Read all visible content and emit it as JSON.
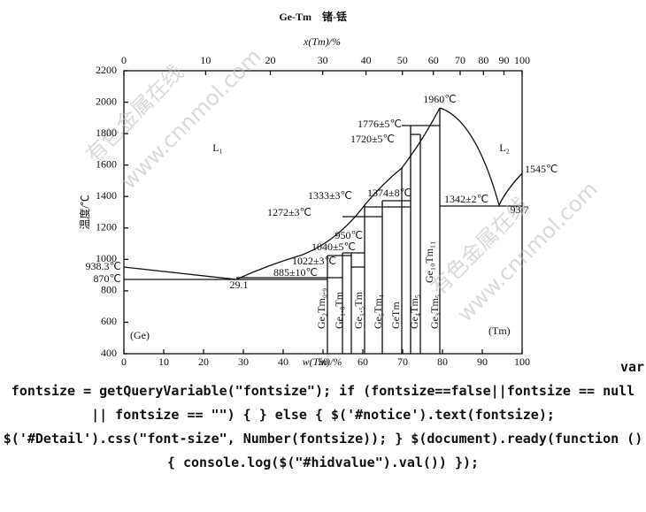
{
  "diagram": {
    "title": "Ge-Tm",
    "title_cn": "锗-铥",
    "top_axis_label": "x(Tm)/%",
    "top_ticks": [
      0,
      10,
      20,
      30,
      40,
      50,
      60,
      70,
      80,
      90,
      100
    ],
    "bottom_axis_label": "w(Tm)/%",
    "bottom_ticks": [
      0,
      10,
      20,
      30,
      40,
      50,
      60,
      70,
      80,
      90,
      100
    ],
    "y_axis_label": "温度/℃",
    "y_ticks": [
      400,
      600,
      800,
      1000,
      1200,
      1400,
      1600,
      1800,
      2000,
      2200
    ],
    "left_element": "Ge",
    "right_element": "Tm",
    "annotations": [
      "938.3℃",
      "870℃",
      "29.1",
      "885±10℃",
      "1022±3℃",
      "1040±5℃",
      "950℃",
      "1272±3℃",
      "1333±3℃",
      "1374±8℃",
      "1720±5℃",
      "1776±5℃",
      "1960℃",
      "1342±2℃",
      "93.7",
      "1545℃",
      "L₁",
      "L₂",
      "(Ge)",
      "(Tm)"
    ],
    "phases": [
      "Ge₂Tm₀.₉",
      "Ge₁.₈Tm",
      "Ge₁.₅Tm",
      "Ge₅Tm₄",
      "GeTm",
      "Ge₄Tm₅",
      "Ge₁₀Tm₁₁",
      "Ge₃Tm₅"
    ],
    "watermark": [
      "有色金属在线",
      "www.cnnmol.com",
      "有色金属在线",
      "www.cnnmol.com"
    ]
  },
  "code_text": "fontsize = getQueryVariable(\"fontsize\"); if (fontsize==false||fontsize == null || fontsize == \"\") { } else { $('#notice').text(fontsize); $('#Detail').css(\"font-size\", Number(fontsize)); } $(document).ready(function () { console.log($(\"#hidvalue\").val()) });",
  "code_start": "var"
}
